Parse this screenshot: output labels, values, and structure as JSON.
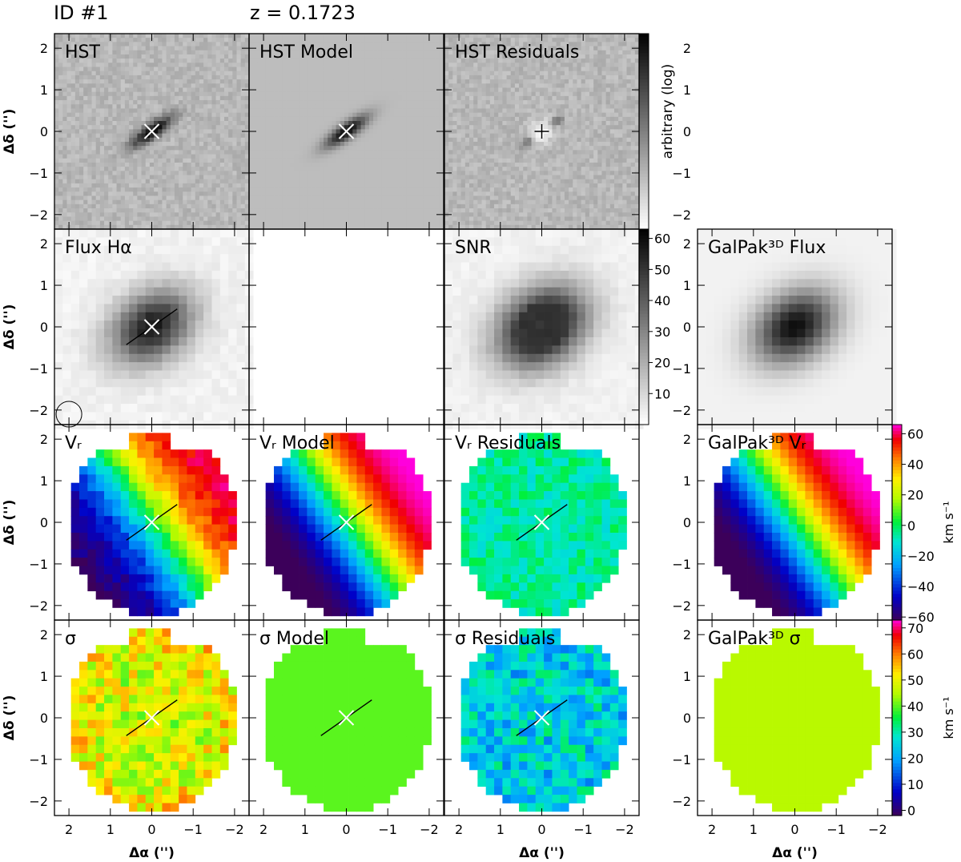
{
  "header": {
    "id_label": "ID #1",
    "redshift_label": "z = 0.1723"
  },
  "axes": {
    "ylabel": "Δδ ('')",
    "xlabel": "Δα ('')",
    "yticks": [
      "2",
      "1",
      "0",
      "−1",
      "−2"
    ],
    "xticks": [
      "2",
      "1",
      "0",
      "−1",
      "−2"
    ]
  },
  "colorbars": {
    "hst": {
      "label": "arbitrary (log)",
      "scale": "log"
    },
    "snr": {
      "ticks": [
        "60",
        "50",
        "40",
        "30",
        "20",
        "10"
      ],
      "range": [
        0,
        63
      ]
    },
    "vr": {
      "label": "km s⁻¹",
      "ticks": [
        "60",
        "40",
        "20",
        "0",
        "−20",
        "−40",
        "−60"
      ],
      "range": [
        -62,
        66
      ]
    },
    "sigma": {
      "label": "km s⁻¹",
      "ticks": [
        "70",
        "60",
        "50",
        "40",
        "30",
        "20",
        "10",
        "0"
      ],
      "range": [
        -2,
        73
      ]
    }
  },
  "panels": {
    "hst": "HST",
    "hst_model": "HST Model",
    "hst_residuals": "HST Residuals",
    "flux": "Flux Hα",
    "snr": "SNR",
    "galpak_flux": "GalPak³ᴰ Flux",
    "vr": "Vᵣ",
    "vr_model": "Vᵣ Model",
    "vr_residuals": "Vᵣ Residuals",
    "galpak_vr": "GalPak³ᴰ Vᵣ",
    "sigma": "σ",
    "sigma_model": "σ Model",
    "sigma_residuals": "σ Residuals",
    "galpak_sigma": "GalPak³ᴰ σ"
  },
  "chart_data": {
    "type": "heatmap",
    "x_range": [
      2.35,
      -2.35
    ],
    "y_range": [
      -2.35,
      2.35
    ],
    "galaxy_center": [
      0,
      0
    ],
    "major_axis_pa_deg": 145,
    "vr_gradient_km_s": {
      "max": 55,
      "min": -60
    },
    "sigma_mean_km_s": {
      "observed": 45,
      "model": 40,
      "galpak": 45
    },
    "snr_peak": 60
  }
}
